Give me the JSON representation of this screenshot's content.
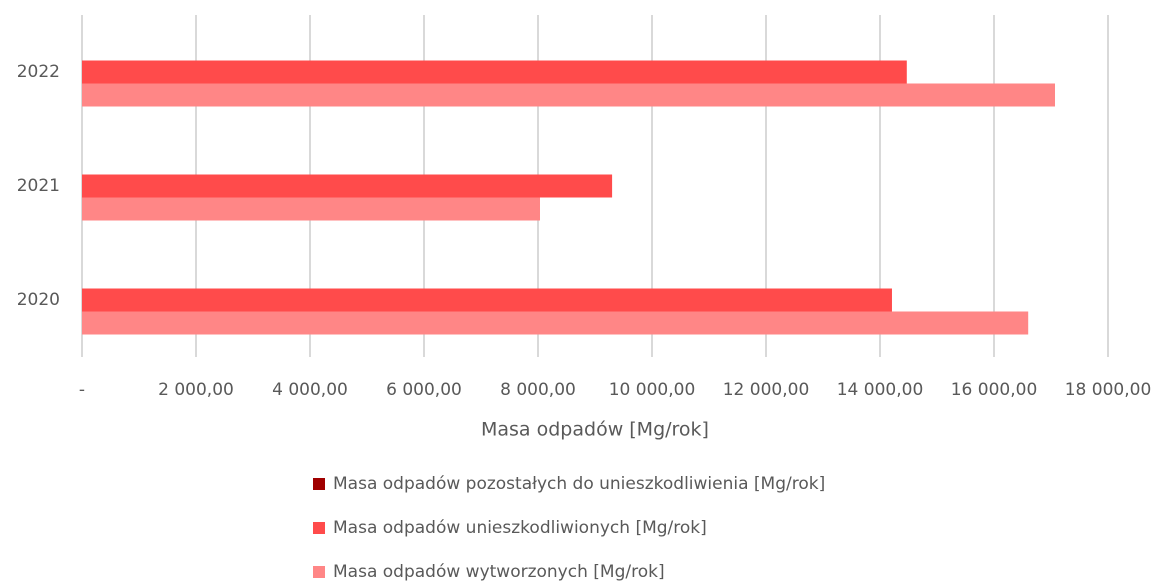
{
  "chart_data": {
    "type": "bar",
    "orientation": "horizontal",
    "categories": [
      "2020",
      "2021",
      "2022"
    ],
    "series": [
      {
        "name": "Masa odpadów pozostałych do unieszkodliwienia [Mg/rok]",
        "color": "#a00000",
        "values": [
          0,
          0,
          0
        ]
      },
      {
        "name": "Masa odpadów unieszkodliwionych [Mg/rok]",
        "color": "#ff4b4b",
        "values": [
          14210,
          9300,
          14470
        ]
      },
      {
        "name": "Masa odpadów wytworzonych [Mg/rok]",
        "color": "#ff8686",
        "values": [
          16600,
          8035,
          17070
        ]
      }
    ],
    "xlabel": "Masa odpadów [Mg/rok]",
    "xlim": [
      0,
      18000
    ],
    "xticks": [
      {
        "value": 0,
        "label": "-"
      },
      {
        "value": 2000,
        "label": "2 000,00"
      },
      {
        "value": 4000,
        "label": "4 000,00"
      },
      {
        "value": 6000,
        "label": "6 000,00"
      },
      {
        "value": 8000,
        "label": "8 000,00"
      },
      {
        "value": 10000,
        "label": "10 000,00"
      },
      {
        "value": 12000,
        "label": "12 000,00"
      },
      {
        "value": 14000,
        "label": "14 000,00"
      },
      {
        "value": 16000,
        "label": "16 000,00"
      },
      {
        "value": 18000,
        "label": "18 000,00"
      }
    ],
    "grid": true,
    "legend": "bottom"
  }
}
